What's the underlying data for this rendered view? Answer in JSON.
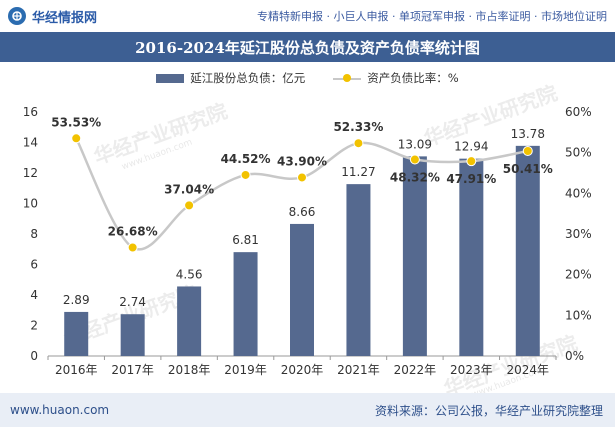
{
  "header": {
    "brand": "华经情报网",
    "services": "专精特新申报 · 小巨人申报 · 单项冠军申报 · 市占率证明 · 市场地位证明"
  },
  "watermark": {
    "text": "华经产业研究院",
    "url": "www.huaon.com"
  },
  "footer": {
    "site": "www.huaon.com",
    "source": "资料来源：公司公报，华经产业研究院整理"
  },
  "colors": {
    "bar": "#55698f",
    "line": "#c8c8c8",
    "marker": "#f2c200",
    "title_bg": "#3d5f93"
  },
  "chart_data": {
    "type": "bar",
    "title": "2016-2024年延江股份总负债及资产负债率统计图",
    "categories": [
      "2016年",
      "2017年",
      "2018年",
      "2019年",
      "2020年",
      "2021年",
      "2022年",
      "2023年",
      "2024年"
    ],
    "series": [
      {
        "name": "延江股份总负债：亿元",
        "type": "bar",
        "axis": "left",
        "values": [
          2.89,
          2.74,
          4.56,
          6.81,
          8.66,
          11.27,
          13.09,
          12.94,
          13.78
        ],
        "labels": [
          "2.89",
          "2.74",
          "4.56",
          "6.81",
          "8.66",
          "11.27",
          "13.09",
          "12.94",
          "13.78"
        ]
      },
      {
        "name": "资产负债比率：%",
        "type": "line",
        "axis": "right",
        "values": [
          53.53,
          26.68,
          37.04,
          44.52,
          43.9,
          52.33,
          48.32,
          47.91,
          50.41
        ],
        "labels": [
          "53.53%",
          "26.68%",
          "37.04%",
          "44.52%",
          "43.90%",
          "52.33%",
          "48.32%",
          "47.91%",
          "50.41%"
        ]
      }
    ],
    "y_left": {
      "min": 0,
      "max": 16,
      "ticks": [
        "0",
        "2",
        "4",
        "6",
        "8",
        "10",
        "12",
        "14",
        "16"
      ]
    },
    "y_right": {
      "min": 0,
      "max": 60,
      "ticks": [
        "0%",
        "10%",
        "20%",
        "30%",
        "40%",
        "50%",
        "60%"
      ]
    },
    "grid": false,
    "legend": "top-center"
  }
}
